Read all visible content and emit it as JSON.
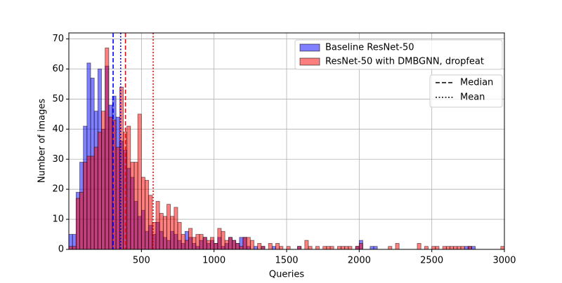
{
  "chart_data": {
    "type": "histogram",
    "x_label": "Queries",
    "y_label": "Number of images",
    "bins": [
      0,
      25,
      50,
      75,
      100,
      125,
      150,
      175,
      200,
      225,
      250,
      275,
      300,
      325,
      350,
      375,
      400,
      425,
      450,
      475,
      500,
      525,
      550,
      575,
      600,
      625,
      650,
      675,
      700,
      725,
      750,
      775,
      800,
      825,
      850,
      875,
      900,
      925,
      950,
      975,
      1000,
      1025,
      1050,
      1075,
      1100,
      1125,
      1150,
      1175,
      1200,
      1225,
      1250,
      1275,
      1300,
      1325,
      1350,
      1375,
      1400,
      1425,
      1450,
      1475,
      1500,
      1525,
      1550,
      1575,
      1600,
      1625,
      1650,
      1675,
      1700,
      1725,
      1750,
      1775,
      1800,
      1825,
      1850,
      1875,
      1900,
      1925,
      1950,
      1975,
      2000,
      2025,
      2050,
      2075,
      2100,
      2125,
      2150,
      2175,
      2200,
      2225,
      2250,
      2275,
      2300,
      2325,
      2350,
      2375,
      2400,
      2425,
      2450,
      2475,
      2500,
      2525,
      2550,
      2575,
      2600,
      2625,
      2650,
      2675,
      2700,
      2725,
      2750,
      2775,
      2800,
      2825,
      2850,
      2875,
      2900,
      2925,
      2950,
      2975,
      3000
    ],
    "series": [
      {
        "name": "Baseline ResNet-50",
        "color": "rgba(0,0,255,0.5)",
        "values": [
          5,
          5,
          19,
          29,
          41,
          62,
          57,
          46,
          60,
          40,
          61,
          48,
          51,
          44,
          36,
          33,
          27,
          24,
          16,
          11,
          13,
          6,
          8,
          5,
          9,
          6,
          4,
          3,
          6,
          5,
          3,
          2,
          6,
          4,
          2,
          1,
          3,
          4,
          2,
          3,
          2,
          4,
          1,
          2,
          4,
          3,
          2,
          4,
          4,
          1,
          0,
          1,
          0,
          1,
          0,
          0,
          1,
          0,
          0,
          0,
          0,
          0,
          0,
          1,
          0,
          0,
          0,
          0,
          0,
          0,
          0,
          0,
          0,
          0,
          0,
          0,
          0,
          0,
          0,
          1,
          3,
          0,
          0,
          1,
          1,
          0,
          0,
          0,
          0,
          0,
          0,
          0,
          0,
          0,
          0,
          0,
          0,
          0,
          0,
          0,
          0,
          0,
          0,
          0,
          0,
          0,
          0,
          0,
          0,
          1,
          1,
          1,
          0,
          0,
          0,
          0,
          0,
          0,
          0,
          0
        ]
      },
      {
        "name": "ResNet-50 with DMBGNN, dropfeat",
        "color": "rgba(255,0,0,0.5)",
        "values": [
          1,
          1,
          17,
          19,
          29,
          31,
          31,
          34,
          39,
          46,
          67,
          44,
          43,
          34,
          54,
          39,
          41,
          29,
          29,
          45,
          24,
          23,
          18,
          9,
          16,
          12,
          11,
          15,
          11,
          14,
          9,
          5,
          3,
          7,
          4,
          5,
          5,
          4,
          3,
          4,
          2,
          7,
          6,
          3,
          4,
          3,
          2,
          1,
          4,
          4,
          3,
          0,
          2,
          1,
          0,
          2,
          0,
          2,
          1,
          0,
          1,
          0,
          0,
          1,
          0,
          3,
          1,
          0,
          1,
          0,
          1,
          1,
          1,
          0,
          1,
          1,
          1,
          1,
          0,
          1,
          2,
          0,
          0,
          0,
          0,
          0,
          0,
          0,
          1,
          0,
          2,
          0,
          0,
          0,
          0,
          0,
          2,
          0,
          1,
          0,
          1,
          1,
          0,
          1,
          1,
          1,
          1,
          1,
          1,
          0,
          1,
          0,
          0,
          0,
          0,
          0,
          0,
          0,
          0,
          1
        ]
      }
    ],
    "vlines": [
      {
        "value": 305,
        "color": "#0000ff",
        "style": "dashed"
      },
      {
        "value": 357,
        "color": "#0000ff",
        "style": "dotted"
      },
      {
        "value": 390,
        "color": "#ff0000",
        "style": "dashed"
      },
      {
        "value": 581,
        "color": "#ff0000",
        "style": "dotted"
      }
    ],
    "line_legend": [
      {
        "label": "Median",
        "style": "dashed"
      },
      {
        "label": "Mean",
        "style": "dotted"
      }
    ],
    "xlim": [
      0,
      3000
    ],
    "xticks": [
      500,
      1000,
      1500,
      2000,
      2500,
      3000
    ],
    "ylim": [
      0,
      72
    ],
    "yticks": [
      0,
      10,
      20,
      30,
      40,
      50,
      60,
      70
    ],
    "grid": true,
    "legend_loc": "upper right"
  }
}
